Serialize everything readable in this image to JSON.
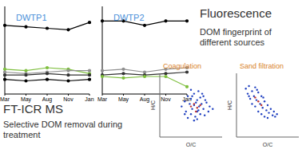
{
  "chart_data": [
    {
      "type": "line",
      "title": "DWTP1",
      "categories": [
        "Mar",
        "May",
        "Aug",
        "Nov",
        "Jan"
      ],
      "ylim": [
        0,
        0.6
      ],
      "tick_labels": "x",
      "series": [
        {
          "color": "#000000",
          "marker": "circle",
          "values": [
            0.47,
            0.46,
            0.45,
            0.44,
            0.49
          ]
        },
        {
          "color": "#7fbf3f",
          "marker": "circle",
          "values": [
            0.17,
            0.16,
            0.18,
            0.17,
            0.14
          ]
        },
        {
          "color": "#909090",
          "marker": "circle",
          "values": [
            0.15,
            0.14,
            0.15,
            0.16,
            0.16
          ]
        },
        {
          "color": "#333333",
          "marker": "circle",
          "values": [
            0.13,
            0.13,
            0.14,
            0.13,
            0.13
          ]
        },
        {
          "color": "#000000",
          "marker": "circle",
          "values": [
            0.1,
            0.09,
            0.1,
            0.09,
            0.1
          ]
        }
      ]
    },
    {
      "type": "line",
      "title": "DWTP2",
      "categories": [
        "Mar",
        "May",
        "Aug",
        "Nov",
        "Jan"
      ],
      "ylim": [
        0,
        0.6
      ],
      "tick_labels": "x",
      "series": [
        {
          "color": "#000000",
          "marker": "circle",
          "values": [
            0.5,
            0.5,
            0.47,
            0.5,
            0.5
          ]
        },
        {
          "color": "#909090",
          "marker": "circle",
          "values": [
            0.16,
            0.17,
            0.15,
            0.17,
            0.18
          ]
        },
        {
          "color": "#333333",
          "marker": "circle",
          "values": [
            0.13,
            0.14,
            0.13,
            0.14,
            0.15
          ]
        },
        {
          "color": "#7fbf3f",
          "marker": "circle",
          "values": [
            0.12,
            0.11,
            0.12,
            0.12,
            0.05
          ]
        }
      ]
    },
    {
      "type": "scatter",
      "title": "Coagulation",
      "x_label": "O/C",
      "y_label": "H/C",
      "xlim": [
        0,
        1
      ],
      "ylim": [
        0,
        2.5
      ],
      "tick_labels": false,
      "series": [
        {
          "color": "#2040c0",
          "x": [
            0.35,
            0.4,
            0.42,
            0.45,
            0.48,
            0.5,
            0.5,
            0.52,
            0.55,
            0.55,
            0.57,
            0.6,
            0.6,
            0.62,
            0.63,
            0.65,
            0.65,
            0.67,
            0.7,
            0.7,
            0.72,
            0.75,
            0.78,
            0.8,
            0.45,
            0.5,
            0.58,
            0.68,
            0.73,
            0.55,
            0.62,
            0.4,
            0.85,
            0.6,
            0.52
          ],
          "y": [
            1.2,
            1.4,
            1.0,
            1.6,
            1.3,
            0.9,
            1.5,
            1.1,
            1.7,
            1.25,
            0.8,
            1.45,
            1.0,
            1.8,
            1.2,
            0.9,
            1.55,
            1.3,
            1.1,
            1.6,
            0.85,
            1.35,
            1.0,
            1.2,
            0.75,
            1.85,
            1.35,
            1.7,
            1.45,
            0.65,
            1.05,
            0.9,
            1.1,
            0.7,
            1.6
          ]
        },
        {
          "color": "#c03030",
          "x": [
            0.55,
            0.6,
            0.5,
            0.65,
            0.58
          ],
          "y": [
            1.3,
            1.15,
            1.2,
            1.25,
            1.0
          ]
        }
      ]
    },
    {
      "type": "scatter",
      "title": "Sand filtration",
      "x_label": "O/C",
      "y_label": "H/C",
      "xlim": [
        0,
        1
      ],
      "ylim": [
        0,
        2.5
      ],
      "tick_labels": false,
      "series": [
        {
          "color": "#2040c0",
          "x": [
            0.15,
            0.18,
            0.2,
            0.22,
            0.25,
            0.25,
            0.28,
            0.3,
            0.3,
            0.32,
            0.35,
            0.35,
            0.38,
            0.4,
            0.4,
            0.42,
            0.45,
            0.45,
            0.48,
            0.5,
            0.5,
            0.52,
            0.55,
            0.58,
            0.6,
            0.62,
            0.65,
            0.2,
            0.33,
            0.43
          ],
          "y": [
            1.9,
            1.7,
            2.0,
            1.5,
            1.8,
            1.3,
            1.6,
            1.95,
            1.2,
            1.45,
            1.75,
            1.0,
            1.3,
            1.6,
            0.9,
            1.15,
            1.4,
            0.8,
            1.05,
            1.25,
            0.75,
            0.95,
            1.1,
            0.85,
            1.0,
            0.8,
            0.9,
            1.6,
            1.85,
            1.55
          ]
        },
        {
          "color": "#c03030",
          "x": [
            0.35,
            0.4,
            0.3
          ],
          "y": [
            1.4,
            1.25,
            1.55
          ]
        }
      ]
    }
  ],
  "annotations": [
    "Fluorescence",
    "DOM fingerprint of different sources",
    "FT-ICR MS",
    "Selective DOM removal during treatment"
  ]
}
